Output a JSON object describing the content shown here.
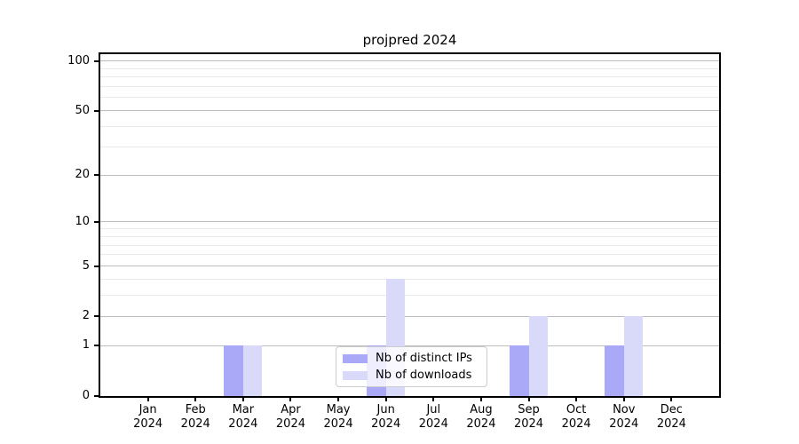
{
  "title": "projpred 2024",
  "legend": {
    "items": [
      {
        "label": "Nb of distinct IPs",
        "color": "#a9a9f8"
      },
      {
        "label": "Nb of downloads",
        "color": "#d9d9f9"
      }
    ]
  },
  "colors": {
    "distinct_ips_bar": "#a9a9f8",
    "downloads_bar": "#d9d9f9",
    "major_grid": "#bdbdbd",
    "minor_grid": "#eaeaea",
    "axis": "#000000"
  },
  "chart_data": {
    "type": "bar",
    "title": "projpred 2024",
    "categories": [
      "Jan",
      "Feb",
      "Mar",
      "Apr",
      "May",
      "Jun",
      "Jul",
      "Aug",
      "Sep",
      "Oct",
      "Nov",
      "Dec"
    ],
    "x_tick_year": "2024",
    "series": [
      {
        "name": "Nb of distinct IPs",
        "color": "#a9a9f8",
        "values": [
          0,
          0,
          1,
          0,
          0,
          1,
          0,
          0,
          1,
          0,
          1,
          0
        ]
      },
      {
        "name": "Nb of downloads",
        "color": "#d9d9f9",
        "values": [
          0,
          0,
          1,
          0,
          0,
          4,
          0,
          0,
          2,
          0,
          2,
          0
        ]
      }
    ],
    "xlabel": "",
    "ylabel": "",
    "y_scale": "log1p",
    "y_major_ticks": [
      0,
      1,
      2,
      5,
      10,
      20,
      50,
      100
    ],
    "y_minor_ticks": [
      3,
      4,
      6,
      7,
      8,
      9,
      30,
      40,
      60,
      70,
      80,
      90
    ],
    "ylim": [
      0,
      110
    ],
    "grid": "both",
    "legend_position": "lower center"
  }
}
